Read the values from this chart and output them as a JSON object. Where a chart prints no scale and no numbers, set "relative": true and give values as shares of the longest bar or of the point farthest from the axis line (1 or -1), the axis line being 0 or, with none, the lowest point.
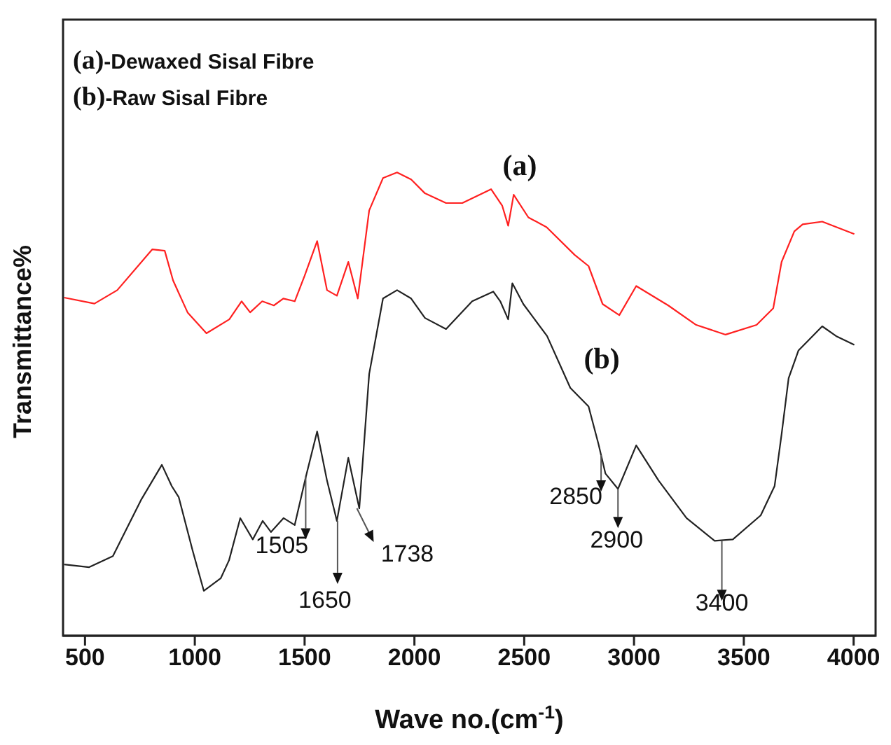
{
  "chart_data": {
    "type": "line",
    "relative": true,
    "xlabel": "Wave no.(cm$^{-1}$)",
    "ylabel": "Transmittance%",
    "xlim": [
      400,
      4100
    ],
    "xticks": [
      500,
      1000,
      1500,
      2000,
      2500,
      3000,
      3500,
      4000
    ],
    "marker": "none",
    "line_style": "solid",
    "series": [
      {
        "name": "(a)",
        "color": "#ff2020",
        "x": [
          405,
          543,
          647,
          806,
          863,
          901,
          967,
          1053,
          1157,
          1213,
          1252,
          1307,
          1360,
          1403,
          1455,
          1500,
          1557,
          1602,
          1647,
          1699,
          1742,
          1794,
          1857,
          1921,
          1985,
          2048,
          2144,
          2218,
          2349,
          2400,
          2427,
          2452,
          2519,
          2602,
          2730,
          2793,
          2857,
          2933,
          3010,
          3156,
          3283,
          3417,
          3558,
          3634,
          3672,
          3730,
          3768,
          3857,
          4003
        ],
        "values": [
          0.73,
          0.717,
          0.746,
          0.834,
          0.831,
          0.767,
          0.698,
          0.653,
          0.683,
          0.722,
          0.698,
          0.722,
          0.713,
          0.728,
          0.722,
          0.777,
          0.852,
          0.746,
          0.734,
          0.807,
          0.728,
          0.918,
          0.988,
          1.0,
          0.985,
          0.955,
          0.934,
          0.934,
          0.964,
          0.928,
          0.885,
          0.952,
          0.903,
          0.882,
          0.822,
          0.798,
          0.716,
          0.692,
          0.755,
          0.713,
          0.671,
          0.65,
          0.671,
          0.707,
          0.807,
          0.873,
          0.888,
          0.894,
          0.867
        ]
      },
      {
        "name": "(b)",
        "color": "#222222",
        "x": [
          405,
          519,
          627,
          755,
          850,
          895,
          927,
          990,
          1041,
          1118,
          1156,
          1207,
          1264,
          1309,
          1347,
          1404,
          1455,
          1506,
          1557,
          1602,
          1647,
          1699,
          1749,
          1794,
          1857,
          1921,
          1985,
          2048,
          2144,
          2263,
          2359,
          2391,
          2427,
          2446,
          2496,
          2604,
          2710,
          2793,
          2838,
          2870,
          2927,
          3010,
          3112,
          3239,
          3367,
          3450,
          3577,
          3640,
          3672,
          3704,
          3749,
          3793,
          3857,
          3920,
          4003
        ],
        "values": [
          0.154,
          0.148,
          0.172,
          0.293,
          0.369,
          0.323,
          0.299,
          0.184,
          0.097,
          0.124,
          0.163,
          0.254,
          0.208,
          0.248,
          0.224,
          0.254,
          0.239,
          0.344,
          0.441,
          0.335,
          0.248,
          0.384,
          0.275,
          0.565,
          0.728,
          0.746,
          0.728,
          0.686,
          0.662,
          0.722,
          0.743,
          0.722,
          0.683,
          0.761,
          0.716,
          0.647,
          0.535,
          0.495,
          0.414,
          0.35,
          0.317,
          0.411,
          0.335,
          0.254,
          0.205,
          0.208,
          0.26,
          0.323,
          0.435,
          0.556,
          0.616,
          0.637,
          0.668,
          0.647,
          0.628
        ]
      }
    ],
    "annotations": [
      "(a)-Dewaxed Sisal Fibre",
      "(b)-Raw Sisal Fibre",
      {
        "text": "1505",
        "x": 1505,
        "y": 0.344
      },
      {
        "text": "1650",
        "x": 1650,
        "y": 0.248
      },
      {
        "text": "1738",
        "x": 1738,
        "y": 0.275
      },
      {
        "text": "2850",
        "x": 2850,
        "y": 0.39
      },
      {
        "text": "2900",
        "x": 2927,
        "y": 0.317
      },
      {
        "text": "3400",
        "x": 3400,
        "y": 0.205
      }
    ]
  }
}
